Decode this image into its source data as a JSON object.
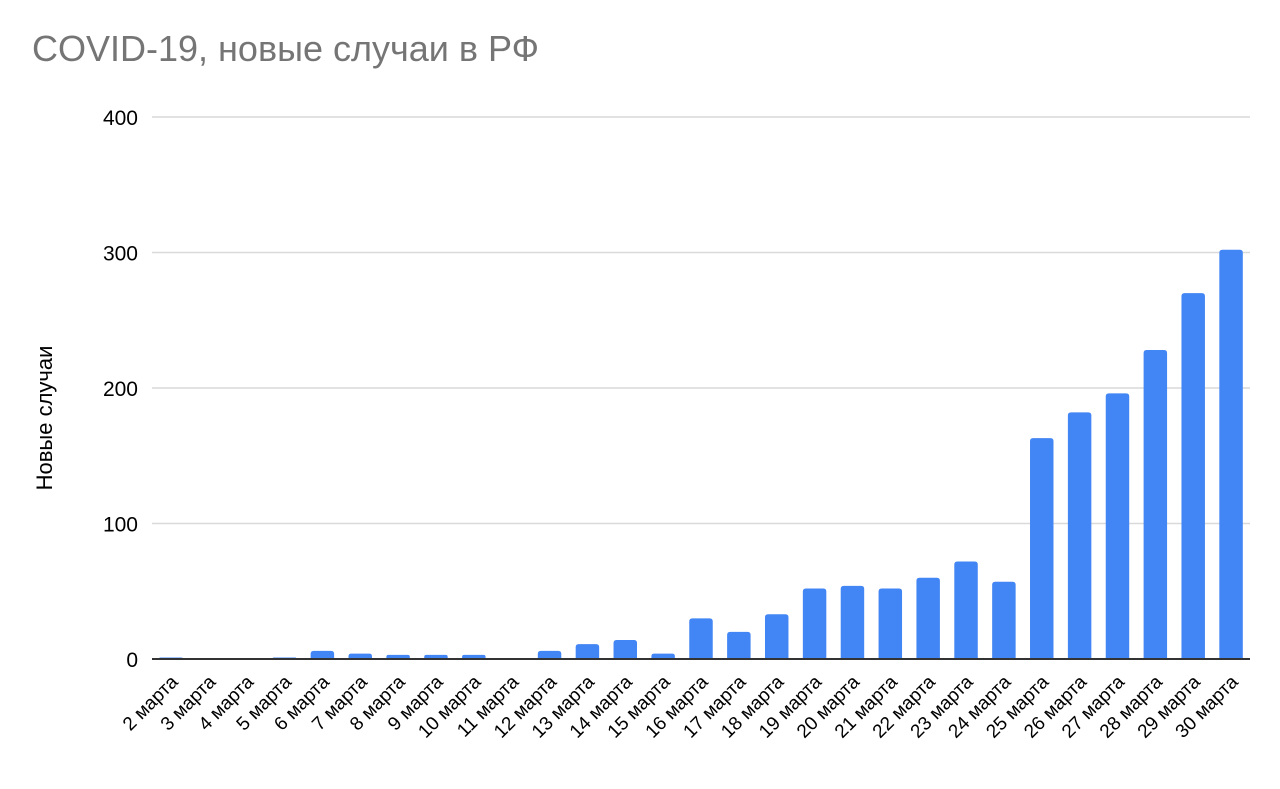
{
  "chart_data": {
    "type": "bar",
    "title": "COVID-19, новые случаи в РФ",
    "xlabel": "",
    "ylabel": "Новые случаи",
    "ylim": [
      0,
      400
    ],
    "yticks": [
      0,
      100,
      200,
      300,
      400
    ],
    "grid": true,
    "legend": "none",
    "bar_color": "#4285f4",
    "categories": [
      "2 марта",
      "3 марта",
      "4 марта",
      "5 марта",
      "6 марта",
      "7 марта",
      "8 марта",
      "9 марта",
      "10 марта",
      "11 марта",
      "12 марта",
      "13 марта",
      "14 марта",
      "15 марта",
      "16 марта",
      "17 марта",
      "18 марта",
      "19 марта",
      "20 марта",
      "21 марта",
      "22 марта",
      "23 марта",
      "24 марта",
      "25 марта",
      "26 марта",
      "27 марта",
      "28 марта",
      "29 марта",
      "30 марта"
    ],
    "values": [
      1,
      0,
      0,
      1,
      6,
      4,
      3,
      3,
      3,
      0,
      6,
      11,
      14,
      4,
      30,
      20,
      33,
      52,
      54,
      52,
      60,
      72,
      57,
      163,
      182,
      196,
      228,
      270,
      302
    ]
  }
}
